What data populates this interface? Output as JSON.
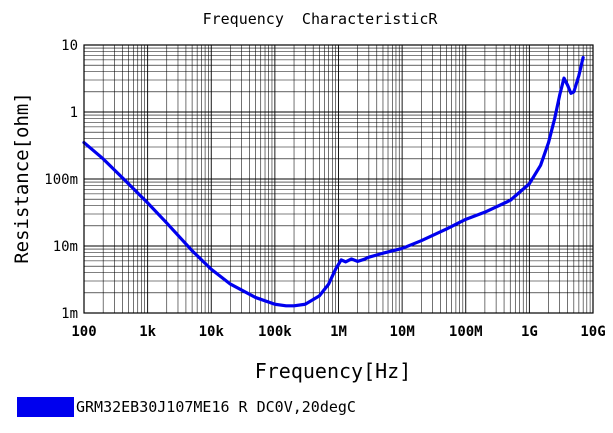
{
  "chart_data": {
    "type": "line",
    "title": "Frequency  CharacteristicR",
    "xlabel": "Frequency[Hz]",
    "ylabel": "Resistance[ohm]",
    "x_scale": "log",
    "y_scale": "log",
    "xlim": [
      100,
      10000000000
    ],
    "ylim": [
      0.001,
      10
    ],
    "x_ticks": [
      {
        "value": 100,
        "label": "100"
      },
      {
        "value": 1000,
        "label": "1k"
      },
      {
        "value": 10000,
        "label": "10k"
      },
      {
        "value": 100000,
        "label": "100k"
      },
      {
        "value": 1000000,
        "label": "1M"
      },
      {
        "value": 10000000,
        "label": "10M"
      },
      {
        "value": 100000000,
        "label": "100M"
      },
      {
        "value": 1000000000,
        "label": "1G"
      },
      {
        "value": 10000000000,
        "label": "10G"
      }
    ],
    "y_ticks": [
      {
        "value": 0.001,
        "label": "1m"
      },
      {
        "value": 0.01,
        "label": "10m"
      },
      {
        "value": 0.1,
        "label": "100m"
      },
      {
        "value": 1,
        "label": "1"
      },
      {
        "value": 10,
        "label": "10"
      }
    ],
    "grid": true,
    "legend_position": "bottom-left",
    "series": [
      {
        "name": "GRM32EB30J107ME16 R DC0V,20degC",
        "color": "#0000ee",
        "x": [
          100,
          200,
          500,
          1000,
          2000,
          5000,
          10000,
          20000,
          50000,
          100000,
          150000,
          200000,
          300000,
          500000,
          700000,
          900000,
          1100000,
          1300000,
          1600000,
          2000000,
          2500000,
          3000000,
          5000000,
          10000000,
          20000000,
          50000000,
          100000000,
          200000000,
          500000000,
          1000000000,
          1500000000,
          2000000000,
          2500000000,
          3000000000,
          3500000000,
          4000000000,
          4500000000,
          5000000000,
          6000000000,
          7000000000
        ],
        "y": [
          0.35,
          0.2,
          0.085,
          0.044,
          0.022,
          0.0085,
          0.0045,
          0.0027,
          0.0017,
          0.00135,
          0.00128,
          0.00128,
          0.00135,
          0.0018,
          0.0027,
          0.0045,
          0.0062,
          0.0058,
          0.0064,
          0.0059,
          0.0063,
          0.0068,
          0.0078,
          0.0092,
          0.012,
          0.018,
          0.025,
          0.032,
          0.048,
          0.085,
          0.16,
          0.35,
          0.8,
          1.8,
          3.2,
          2.5,
          1.9,
          2.0,
          3.5,
          6.5
        ]
      }
    ]
  }
}
